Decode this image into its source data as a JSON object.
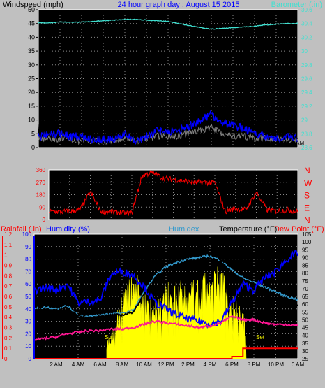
{
  "wind": {
    "left_label": "Windspeed (mph)",
    "title": "24 hour graph day : August 15 2015",
    "right_label": "Barometer (.in)",
    "y_ticks": [
      "0",
      "5",
      "10",
      "15",
      "20",
      "25",
      "30",
      "35",
      "40",
      "45",
      "50"
    ],
    "baro_ticks": [
      "28.6",
      "28.8",
      "29",
      "29.2",
      "29.4",
      "29.6",
      "29.8",
      "30",
      "30.2",
      "30.4",
      "30.6"
    ],
    "x_ticks": [
      "2 AM",
      "4 AM",
      "6 AM",
      "8 AM",
      "10 AM",
      "12 PM",
      "2 PM",
      "4 PM",
      "6 PM",
      "8 PM",
      "10 PM",
      "0 AM"
    ],
    "ylim": [
      0,
      50
    ],
    "baro_lim": [
      28.6,
      30.6
    ]
  },
  "direction": {
    "y_ticks": [
      "0",
      "90",
      "180",
      "270",
      "360"
    ],
    "compass": [
      "N",
      "E",
      "S",
      "W",
      "N"
    ],
    "ylim": [
      0,
      360
    ]
  },
  "temp": {
    "label_rain": "Rainfall (.in)",
    "label_humidity": "Humidity (%)",
    "label_humidex": "Humidex",
    "label_temperature": "Temperature (°F)",
    "label_dewpoint": "Dew Point (°F)",
    "rain_ticks": [
      "0",
      "0.1",
      "0.2",
      "0.3",
      "0.4",
      "0.5",
      "0.6",
      "0.7",
      "0.8",
      "0.9",
      "1",
      "1.1",
      "1.2"
    ],
    "hum_ticks": [
      "0",
      "10",
      "20",
      "30",
      "40",
      "50",
      "60",
      "70",
      "80",
      "90",
      "100"
    ],
    "temp_ticks": [
      "25",
      "30",
      "35",
      "40",
      "45",
      "50",
      "55",
      "60",
      "65",
      "70",
      "75",
      "80",
      "85",
      "90",
      "95",
      "100",
      "105"
    ],
    "x_ticks": [
      "2 AM",
      "4 AM",
      "6 AM",
      "8 AM",
      "10 AM",
      "12 PM",
      "2 PM",
      "4 PM",
      "6 PM",
      "8 PM",
      "10 PM",
      "0 AM"
    ],
    "sun_label": "Sun",
    "set_label": "Set"
  },
  "colors": {
    "gust": "#000000",
    "wind_avg": "#0000ff",
    "wind_lull": "#808080",
    "barometer": "#40e0d0",
    "direction": "#ff0000",
    "temperature": "#000000",
    "humidex": "#3399cc",
    "humidity": "#0000ff",
    "dewpoint": "#ff1493",
    "rain": "#ff0000",
    "solar": "#ffff00"
  },
  "chart_data": [
    {
      "type": "line",
      "title": "24 hour graph day : August 15 2015",
      "ylabel": "Windspeed (mph)",
      "y2label": "Barometer (.in)",
      "x_hours": [
        0,
        1,
        2,
        3,
        4,
        5,
        6,
        7,
        8,
        9,
        10,
        11,
        12,
        13,
        14,
        15,
        16,
        17,
        18,
        19,
        20,
        21,
        22,
        23,
        24
      ],
      "series": [
        {
          "name": "gust",
          "values": [
            7,
            8,
            7,
            6,
            7,
            4,
            6,
            5,
            8,
            3,
            7,
            9,
            9,
            10,
            15,
            17,
            21,
            16,
            13,
            10,
            8,
            7,
            5,
            6,
            4
          ]
        },
        {
          "name": "average",
          "values": [
            4,
            5,
            5,
            4,
            4,
            3,
            3,
            3,
            5,
            2,
            4,
            6,
            6,
            6,
            8,
            10,
            12,
            9,
            8,
            7,
            5,
            4,
            3,
            4,
            3
          ]
        },
        {
          "name": "lull",
          "values": [
            2,
            2,
            2,
            2,
            1,
            1,
            1,
            1,
            2,
            1,
            2,
            3,
            3,
            3,
            4,
            5,
            6,
            4,
            3,
            3,
            2,
            2,
            2,
            2,
            1
          ]
        },
        {
          "name": "barometer",
          "values": [
            30.41,
            30.41,
            30.42,
            30.42,
            30.42,
            30.43,
            30.44,
            30.45,
            30.46,
            30.46,
            30.45,
            30.44,
            30.43,
            30.4,
            30.37,
            30.34,
            30.32,
            30.33,
            30.34,
            30.35,
            30.36,
            30.38,
            30.39,
            30.4,
            30.4
          ]
        }
      ],
      "ylim": [
        0,
        50
      ],
      "y2lim": [
        28.6,
        30.6
      ]
    },
    {
      "type": "line",
      "ylabel": "Wind direction",
      "x_hours": [
        0,
        1,
        2,
        3,
        4,
        5,
        6,
        7,
        8,
        9,
        10,
        11,
        12,
        13,
        14,
        15,
        16,
        17,
        18,
        19,
        20,
        21,
        22,
        23,
        24
      ],
      "series": [
        {
          "name": "direction",
          "values": [
            60,
            55,
            60,
            70,
            200,
            60,
            55,
            50,
            45,
            320,
            340,
            300,
            290,
            280,
            270,
            270,
            265,
            60,
            80,
            70,
            200,
            70,
            60,
            70,
            60
          ]
        }
      ],
      "ylim": [
        0,
        360
      ]
    },
    {
      "type": "line",
      "x_hours": [
        0,
        1,
        2,
        3,
        4,
        5,
        6,
        7,
        8,
        9,
        10,
        11,
        12,
        13,
        14,
        15,
        16,
        17,
        18,
        19,
        20,
        21,
        22,
        23,
        24
      ],
      "series": [
        {
          "name": "temperature",
          "values": [
            56,
            57,
            56,
            58,
            52,
            51,
            52,
            53,
            53,
            55,
            66,
            75,
            80,
            84,
            86,
            88,
            89,
            87,
            80,
            73,
            70,
            67,
            63,
            61,
            59
          ]
        },
        {
          "name": "humidex",
          "values": [
            57,
            58,
            57,
            59,
            53,
            52,
            53,
            54,
            54,
            56,
            68,
            78,
            84,
            87,
            89,
            90,
            91,
            88,
            82,
            77,
            74,
            71,
            68,
            65,
            63
          ]
        },
        {
          "name": "dewpoint",
          "values": [
            37,
            38,
            39,
            41,
            42,
            43,
            43,
            44,
            44,
            45,
            47,
            49,
            48,
            47,
            46,
            45,
            46,
            48,
            52,
            50,
            50,
            48,
            47,
            47,
            46
          ]
        },
        {
          "name": "humidity",
          "values": [
            55,
            57,
            55,
            60,
            45,
            46,
            47,
            68,
            70,
            67,
            58,
            45,
            40,
            35,
            32,
            30,
            28,
            30,
            45,
            60,
            55,
            65,
            70,
            80,
            85
          ]
        },
        {
          "name": "rainfall",
          "values": [
            0,
            0,
            0,
            0,
            0,
            0,
            0,
            0,
            0,
            0,
            0,
            0,
            0,
            0,
            0,
            0,
            0,
            0,
            0.02,
            0.1,
            0.1,
            0.1,
            0.1,
            0.1,
            0.1
          ]
        },
        {
          "name": "solar",
          "values": [
            0,
            0,
            0,
            0,
            0,
            0,
            0,
            0.2,
            0.5,
            0.65,
            0.55,
            0.45,
            0.55,
            0.6,
            0.55,
            0.6,
            0.65,
            0.7,
            0.5,
            0.35,
            0,
            0,
            0,
            0,
            0
          ]
        }
      ],
      "hum_lim": [
        0,
        100
      ],
      "temp_lim": [
        25,
        105
      ],
      "rain_lim": [
        0,
        1.2
      ]
    }
  ]
}
